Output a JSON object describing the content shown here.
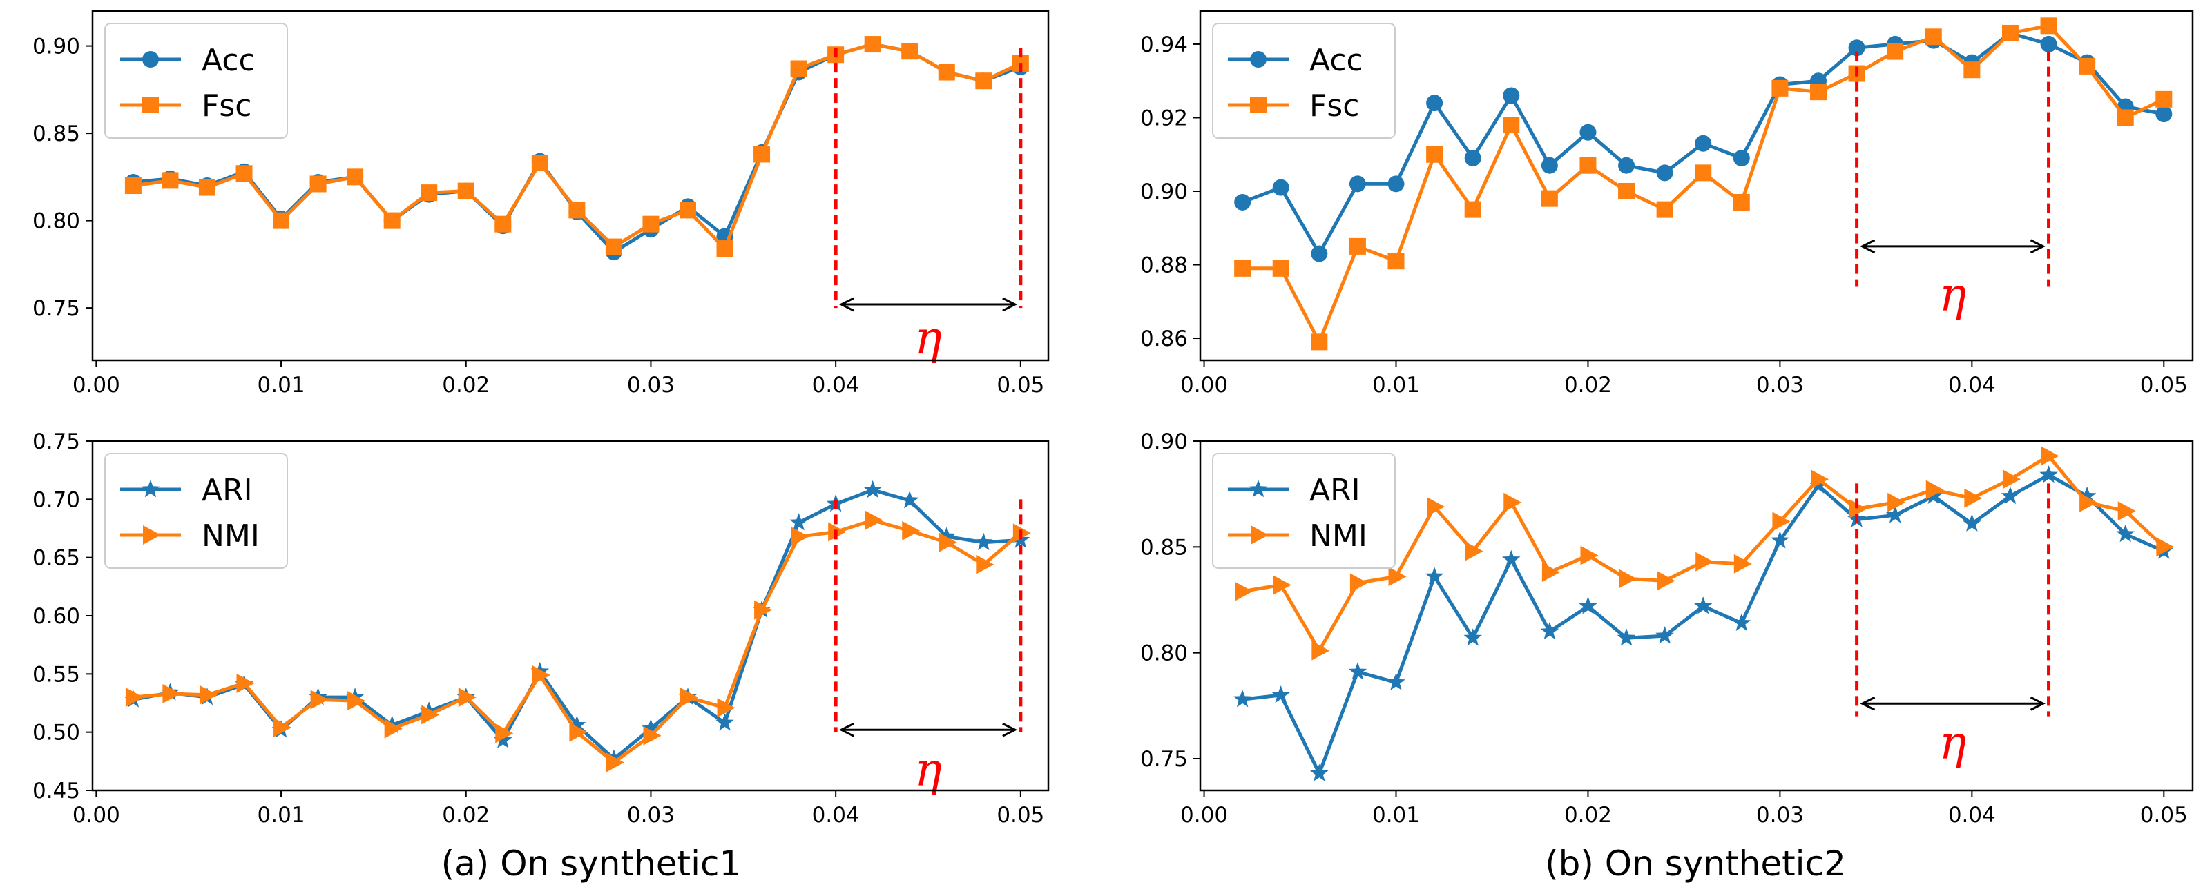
{
  "colors": {
    "blue": "#1f77b4",
    "orange": "#ff7f0e",
    "red": "#ff0000"
  },
  "captions": [
    "(a) On synthetic1",
    "(b) On synthetic2"
  ],
  "chart_data": [
    {
      "type": "line",
      "panel": "top-left",
      "x": [
        0.002,
        0.004,
        0.006,
        0.008,
        0.01,
        0.012,
        0.014,
        0.016,
        0.018,
        0.02,
        0.022,
        0.024,
        0.026,
        0.028,
        0.03,
        0.032,
        0.034,
        0.036,
        0.038,
        0.04,
        0.042,
        0.044,
        0.046,
        0.048,
        0.05
      ],
      "xlim": [
        -0.0002,
        0.0515
      ],
      "ylim": [
        0.72,
        0.92
      ],
      "xticks": [
        0.0,
        0.01,
        0.02,
        0.03,
        0.04,
        0.05
      ],
      "xtick_labels": [
        "0.00",
        "0.01",
        "0.02",
        "0.03",
        "0.04",
        "0.05"
      ],
      "yticks": [
        0.75,
        0.8,
        0.85,
        0.9
      ],
      "ytick_labels": [
        "0.75",
        "0.80",
        "0.85",
        "0.90"
      ],
      "legend": "top-left",
      "series": [
        {
          "name": "Acc",
          "marker": "circle",
          "color": "#1f77b4",
          "values": [
            0.822,
            0.824,
            0.82,
            0.828,
            0.801,
            0.822,
            0.825,
            0.8,
            0.815,
            0.817,
            0.797,
            0.834,
            0.805,
            0.782,
            0.795,
            0.808,
            0.791,
            0.839,
            0.885,
            0.895,
            0.901,
            0.897,
            0.885,
            0.88,
            0.888
          ]
        },
        {
          "name": "Fsc",
          "marker": "square",
          "color": "#ff7f0e",
          "values": [
            0.82,
            0.823,
            0.819,
            0.827,
            0.8,
            0.821,
            0.825,
            0.8,
            0.816,
            0.817,
            0.798,
            0.833,
            0.806,
            0.785,
            0.798,
            0.806,
            0.784,
            0.838,
            0.887,
            0.895,
            0.901,
            0.897,
            0.885,
            0.88,
            0.89
          ]
        }
      ],
      "annotation": {
        "label": "η",
        "x_start": 0.04,
        "x_end": 0.05,
        "line_y_top": 0.899,
        "line_y_bottom": 0.75,
        "arrow_y": 0.752,
        "label_y": 0.731
      }
    },
    {
      "type": "line",
      "panel": "top-right",
      "x": [
        0.002,
        0.004,
        0.006,
        0.008,
        0.01,
        0.012,
        0.014,
        0.016,
        0.018,
        0.02,
        0.022,
        0.024,
        0.026,
        0.028,
        0.03,
        0.032,
        0.034,
        0.036,
        0.038,
        0.04,
        0.042,
        0.044,
        0.046,
        0.048,
        0.05
      ],
      "xlim": [
        -0.0002,
        0.0515
      ],
      "ylim": [
        0.854,
        0.949
      ],
      "xticks": [
        0.0,
        0.01,
        0.02,
        0.03,
        0.04,
        0.05
      ],
      "xtick_labels": [
        "0.00",
        "0.01",
        "0.02",
        "0.03",
        "0.04",
        "0.05"
      ],
      "yticks": [
        0.86,
        0.88,
        0.9,
        0.92,
        0.94
      ],
      "ytick_labels": [
        "0.86",
        "0.88",
        "0.90",
        "0.92",
        "0.94"
      ],
      "legend": "top-left",
      "series": [
        {
          "name": "Acc",
          "marker": "circle",
          "color": "#1f77b4",
          "values": [
            0.897,
            0.901,
            0.883,
            0.902,
            0.902,
            0.924,
            0.909,
            0.926,
            0.907,
            0.916,
            0.907,
            0.905,
            0.913,
            0.909,
            0.929,
            0.93,
            0.939,
            0.94,
            0.941,
            0.935,
            0.943,
            0.94,
            0.935,
            0.923,
            0.921
          ]
        },
        {
          "name": "Fsc",
          "marker": "square",
          "color": "#ff7f0e",
          "values": [
            0.879,
            0.879,
            0.859,
            0.885,
            0.881,
            0.91,
            0.895,
            0.918,
            0.898,
            0.907,
            0.9,
            0.895,
            0.905,
            0.897,
            0.928,
            0.927,
            0.932,
            0.938,
            0.942,
            0.933,
            0.943,
            0.945,
            0.934,
            0.92,
            0.925
          ]
        }
      ],
      "annotation": {
        "label": "η",
        "x_start": 0.034,
        "x_end": 0.044,
        "line_y_top": 0.938,
        "line_y_bottom": 0.874,
        "arrow_y": 0.885,
        "label_y": 0.871
      }
    },
    {
      "type": "line",
      "panel": "bottom-left",
      "x": [
        0.002,
        0.004,
        0.006,
        0.008,
        0.01,
        0.012,
        0.014,
        0.016,
        0.018,
        0.02,
        0.022,
        0.024,
        0.026,
        0.028,
        0.03,
        0.032,
        0.034,
        0.036,
        0.038,
        0.04,
        0.042,
        0.044,
        0.046,
        0.048,
        0.05
      ],
      "xlim": [
        -0.0002,
        0.0515
      ],
      "ylim": [
        0.45,
        0.75
      ],
      "xticks": [
        0.0,
        0.01,
        0.02,
        0.03,
        0.04,
        0.05
      ],
      "xtick_labels": [
        "0.00",
        "0.01",
        "0.02",
        "0.03",
        "0.04",
        "0.05"
      ],
      "yticks": [
        0.45,
        0.5,
        0.55,
        0.6,
        0.65,
        0.7,
        0.75
      ],
      "ytick_labels": [
        "0.45",
        "0.50",
        "0.55",
        "0.60",
        "0.65",
        "0.70",
        "0.75"
      ],
      "legend": "top-left",
      "series": [
        {
          "name": "ARI",
          "marker": "star",
          "color": "#1f77b4",
          "values": [
            0.528,
            0.534,
            0.53,
            0.541,
            0.502,
            0.53,
            0.53,
            0.506,
            0.518,
            0.53,
            0.493,
            0.552,
            0.506,
            0.477,
            0.503,
            0.53,
            0.508,
            0.605,
            0.68,
            0.696,
            0.708,
            0.699,
            0.668,
            0.663,
            0.665
          ]
        },
        {
          "name": "NMI",
          "marker": "triangle-right",
          "color": "#ff7f0e",
          "values": [
            0.53,
            0.533,
            0.532,
            0.542,
            0.504,
            0.528,
            0.527,
            0.503,
            0.515,
            0.53,
            0.499,
            0.549,
            0.5,
            0.474,
            0.497,
            0.53,
            0.521,
            0.605,
            0.668,
            0.672,
            0.682,
            0.673,
            0.663,
            0.644,
            0.671
          ]
        }
      ],
      "annotation": {
        "label": "η",
        "x_start": 0.04,
        "x_end": 0.05,
        "line_y_top": 0.7,
        "line_y_bottom": 0.5,
        "arrow_y": 0.502,
        "label_y": 0.465
      }
    },
    {
      "type": "line",
      "panel": "bottom-right",
      "x": [
        0.002,
        0.004,
        0.006,
        0.008,
        0.01,
        0.012,
        0.014,
        0.016,
        0.018,
        0.02,
        0.022,
        0.024,
        0.026,
        0.028,
        0.03,
        0.032,
        0.034,
        0.036,
        0.038,
        0.04,
        0.042,
        0.044,
        0.046,
        0.048,
        0.05
      ],
      "xlim": [
        -0.0002,
        0.0515
      ],
      "ylim": [
        0.735,
        0.9
      ],
      "xticks": [
        0.0,
        0.01,
        0.02,
        0.03,
        0.04,
        0.05
      ],
      "xtick_labels": [
        "0.00",
        "0.01",
        "0.02",
        "0.03",
        "0.04",
        "0.05"
      ],
      "yticks": [
        0.75,
        0.8,
        0.85,
        0.9
      ],
      "ytick_labels": [
        "0.75",
        "0.80",
        "0.85",
        "0.90"
      ],
      "legend": "top-left",
      "series": [
        {
          "name": "ARI",
          "marker": "star",
          "color": "#1f77b4",
          "values": [
            0.778,
            0.78,
            0.743,
            0.791,
            0.786,
            0.836,
            0.807,
            0.844,
            0.81,
            0.822,
            0.807,
            0.808,
            0.822,
            0.814,
            0.853,
            0.879,
            0.863,
            0.865,
            0.874,
            0.861,
            0.874,
            0.884,
            0.874,
            0.856,
            0.848
          ]
        },
        {
          "name": "NMI",
          "marker": "triangle-right",
          "color": "#ff7f0e",
          "values": [
            0.829,
            0.832,
            0.801,
            0.833,
            0.836,
            0.869,
            0.848,
            0.871,
            0.838,
            0.846,
            0.835,
            0.834,
            0.843,
            0.842,
            0.862,
            0.882,
            0.868,
            0.871,
            0.877,
            0.873,
            0.882,
            0.893,
            0.871,
            0.867,
            0.85
          ]
        }
      ],
      "annotation": {
        "label": "η",
        "x_start": 0.034,
        "x_end": 0.044,
        "line_y_top": 0.88,
        "line_y_bottom": 0.77,
        "arrow_y": 0.776,
        "label_y": 0.756
      }
    }
  ]
}
